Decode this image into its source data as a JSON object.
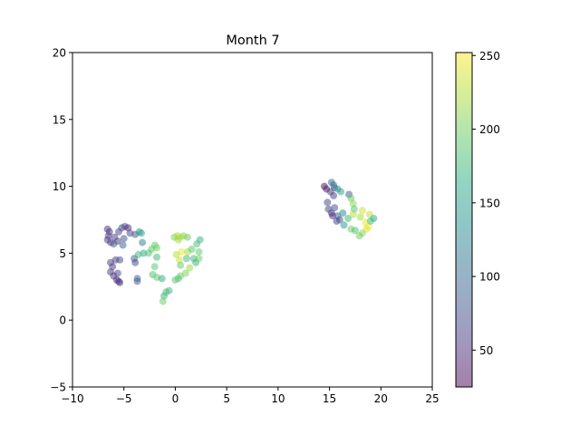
{
  "chart_data": {
    "type": "scatter",
    "title": "Month 7",
    "xlabel": "",
    "ylabel": "",
    "xlim": [
      -10,
      25
    ],
    "ylim": [
      -5,
      20
    ],
    "xticks": [
      -10,
      -5,
      0,
      5,
      10,
      15,
      20,
      25
    ],
    "yticks": [
      -5,
      0,
      5,
      10,
      15,
      20
    ],
    "xtick_labels": [
      "−10",
      "−5",
      "0",
      "5",
      "10",
      "15",
      "20",
      "25"
    ],
    "ytick_labels": [
      "−5",
      "0",
      "5",
      "10",
      "15",
      "20"
    ],
    "grid": false,
    "colormap": "viridis",
    "alpha": 0.5,
    "colorbar": {
      "min": 25,
      "max": 252,
      "ticks": [
        50,
        100,
        150,
        200,
        250
      ],
      "tick_labels": [
        "50",
        "100",
        "150",
        "200",
        "250"
      ]
    },
    "points": [
      {
        "x": -6.6,
        "y": 6.8,
        "c": 55
      },
      {
        "x": -6.4,
        "y": 6.6,
        "c": 60
      },
      {
        "x": -6.5,
        "y": 6.3,
        "c": 58
      },
      {
        "x": -6.6,
        "y": 6.0,
        "c": 62
      },
      {
        "x": -6.3,
        "y": 5.8,
        "c": 65
      },
      {
        "x": -5.9,
        "y": 6.2,
        "c": 63
      },
      {
        "x": -5.5,
        "y": 6.6,
        "c": 66
      },
      {
        "x": -5.2,
        "y": 6.9,
        "c": 70
      },
      {
        "x": -4.9,
        "y": 7.0,
        "c": 72
      },
      {
        "x": -4.6,
        "y": 6.9,
        "c": 45
      },
      {
        "x": -5.6,
        "y": 5.9,
        "c": 64
      },
      {
        "x": -5.1,
        "y": 5.6,
        "c": 90
      },
      {
        "x": -6.0,
        "y": 5.7,
        "c": 75
      },
      {
        "x": -4.4,
        "y": 6.5,
        "c": 68
      },
      {
        "x": -3.9,
        "y": 6.4,
        "c": 80
      },
      {
        "x": -3.5,
        "y": 6.6,
        "c": 140
      },
      {
        "x": -3.3,
        "y": 6.5,
        "c": 150
      },
      {
        "x": -3.2,
        "y": 5.8,
        "c": 120
      },
      {
        "x": -3.1,
        "y": 5.0,
        "c": 160
      },
      {
        "x": -3.6,
        "y": 4.9,
        "c": 175
      },
      {
        "x": -4.0,
        "y": 4.6,
        "c": 95
      },
      {
        "x": -3.9,
        "y": 4.3,
        "c": 70
      },
      {
        "x": -2.6,
        "y": 5.0,
        "c": 185
      },
      {
        "x": -2.3,
        "y": 5.3,
        "c": 190
      },
      {
        "x": -2.0,
        "y": 5.6,
        "c": 195
      },
      {
        "x": -1.8,
        "y": 5.4,
        "c": 200
      },
      {
        "x": -1.8,
        "y": 4.7,
        "c": 175
      },
      {
        "x": -2.0,
        "y": 4.0,
        "c": 190
      },
      {
        "x": -2.2,
        "y": 3.4,
        "c": 185
      },
      {
        "x": -1.8,
        "y": 3.2,
        "c": 195
      },
      {
        "x": -1.3,
        "y": 3.1,
        "c": 160
      },
      {
        "x": -0.9,
        "y": 2.1,
        "c": 180
      },
      {
        "x": -0.6,
        "y": 2.2,
        "c": 175
      },
      {
        "x": -1.1,
        "y": 1.8,
        "c": 170
      },
      {
        "x": -1.2,
        "y": 1.4,
        "c": 200
      },
      {
        "x": -6.3,
        "y": 4.3,
        "c": 60
      },
      {
        "x": -6.1,
        "y": 4.0,
        "c": 58
      },
      {
        "x": -6.3,
        "y": 3.6,
        "c": 55
      },
      {
        "x": -6.0,
        "y": 3.3,
        "c": 52
      },
      {
        "x": -5.7,
        "y": 3.0,
        "c": 50
      },
      {
        "x": -5.5,
        "y": 2.9,
        "c": 56
      },
      {
        "x": -5.4,
        "y": 2.8,
        "c": 60
      },
      {
        "x": -5.8,
        "y": 4.5,
        "c": 65
      },
      {
        "x": -5.4,
        "y": 4.5,
        "c": 70
      },
      {
        "x": -5.6,
        "y": 3.5,
        "c": 68
      },
      {
        "x": -3.7,
        "y": 3.1,
        "c": 85
      },
      {
        "x": -3.7,
        "y": 2.9,
        "c": 90
      },
      {
        "x": -5.0,
        "y": 6.1,
        "c": 78
      },
      {
        "x": -0.1,
        "y": 6.2,
        "c": 205
      },
      {
        "x": 0.2,
        "y": 6.3,
        "c": 220
      },
      {
        "x": 0.5,
        "y": 6.2,
        "c": 230
      },
      {
        "x": 0.8,
        "y": 6.3,
        "c": 210
      },
      {
        "x": 0.3,
        "y": 6.0,
        "c": 215
      },
      {
        "x": 1.2,
        "y": 6.2,
        "c": 200
      },
      {
        "x": 0.6,
        "y": 5.1,
        "c": 245
      },
      {
        "x": 0.1,
        "y": 4.9,
        "c": 225
      },
      {
        "x": 0.4,
        "y": 4.5,
        "c": 235
      },
      {
        "x": 1.2,
        "y": 5.1,
        "c": 220
      },
      {
        "x": 1.6,
        "y": 5.3,
        "c": 190
      },
      {
        "x": 1.1,
        "y": 4.6,
        "c": 180
      },
      {
        "x": 1.8,
        "y": 4.6,
        "c": 175
      },
      {
        "x": 2.0,
        "y": 4.3,
        "c": 170
      },
      {
        "x": 2.3,
        "y": 4.6,
        "c": 200
      },
      {
        "x": 2.3,
        "y": 5.1,
        "c": 195
      },
      {
        "x": 2.1,
        "y": 5.7,
        "c": 180
      },
      {
        "x": 2.4,
        "y": 6.0,
        "c": 170
      },
      {
        "x": 1.4,
        "y": 3.9,
        "c": 215
      },
      {
        "x": 1.0,
        "y": 3.5,
        "c": 205
      },
      {
        "x": 0.5,
        "y": 3.3,
        "c": 200
      },
      {
        "x": 0.3,
        "y": 3.1,
        "c": 185
      },
      {
        "x": 0.0,
        "y": 3.0,
        "c": 190
      },
      {
        "x": 0.5,
        "y": 4.1,
        "c": 195
      },
      {
        "x": 14.5,
        "y": 10.0,
        "c": 30
      },
      {
        "x": 14.7,
        "y": 9.8,
        "c": 35
      },
      {
        "x": 15.2,
        "y": 10.3,
        "c": 95
      },
      {
        "x": 15.4,
        "y": 10.1,
        "c": 100
      },
      {
        "x": 15.5,
        "y": 9.9,
        "c": 105
      },
      {
        "x": 15.8,
        "y": 9.8,
        "c": 135
      },
      {
        "x": 16.1,
        "y": 9.6,
        "c": 150
      },
      {
        "x": 15.1,
        "y": 9.6,
        "c": 55
      },
      {
        "x": 15.4,
        "y": 9.3,
        "c": 60
      },
      {
        "x": 14.8,
        "y": 8.8,
        "c": 70
      },
      {
        "x": 14.9,
        "y": 8.3,
        "c": 65
      },
      {
        "x": 15.2,
        "y": 8.0,
        "c": 55
      },
      {
        "x": 15.5,
        "y": 8.4,
        "c": 75
      },
      {
        "x": 15.3,
        "y": 7.8,
        "c": 50
      },
      {
        "x": 15.8,
        "y": 7.8,
        "c": 100
      },
      {
        "x": 15.7,
        "y": 7.4,
        "c": 60
      },
      {
        "x": 16.0,
        "y": 7.5,
        "c": 80
      },
      {
        "x": 16.4,
        "y": 7.1,
        "c": 140
      },
      {
        "x": 16.8,
        "y": 7.6,
        "c": 175
      },
      {
        "x": 16.3,
        "y": 8.0,
        "c": 130
      },
      {
        "x": 16.9,
        "y": 9.4,
        "c": 85
      },
      {
        "x": 17.1,
        "y": 9.1,
        "c": 195
      },
      {
        "x": 17.3,
        "y": 8.7,
        "c": 210
      },
      {
        "x": 17.4,
        "y": 8.3,
        "c": 190
      },
      {
        "x": 17.3,
        "y": 7.9,
        "c": 225
      },
      {
        "x": 17.1,
        "y": 6.8,
        "c": 200
      },
      {
        "x": 17.5,
        "y": 6.7,
        "c": 185
      },
      {
        "x": 18.0,
        "y": 7.7,
        "c": 220
      },
      {
        "x": 18.2,
        "y": 8.2,
        "c": 235
      },
      {
        "x": 18.5,
        "y": 7.3,
        "c": 245
      },
      {
        "x": 18.8,
        "y": 7.0,
        "c": 250
      },
      {
        "x": 18.6,
        "y": 6.8,
        "c": 240
      },
      {
        "x": 18.2,
        "y": 6.5,
        "c": 210
      },
      {
        "x": 17.9,
        "y": 6.3,
        "c": 200
      },
      {
        "x": 18.9,
        "y": 7.9,
        "c": 230
      },
      {
        "x": 19.3,
        "y": 7.6,
        "c": 160
      },
      {
        "x": 19.0,
        "y": 7.4,
        "c": 175
      }
    ]
  }
}
